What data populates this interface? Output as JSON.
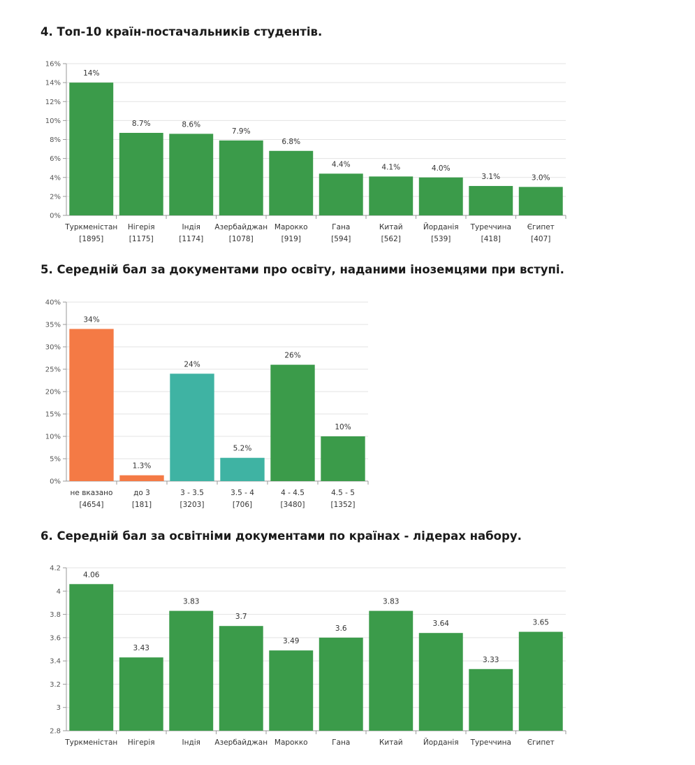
{
  "sections": [
    {
      "title": "4. Топ-10 країн-постачальників студентів."
    },
    {
      "title": "5. Середній бал за документами про освіту, наданими іноземцями при вступі."
    },
    {
      "title": "6. Середній бал за освітніми документами по країнах - лідерах набору."
    }
  ],
  "colors": {
    "green": "#3b9b4a",
    "orange": "#f47a45",
    "teal": "#3fb3a3",
    "grid": "#e3e3e3",
    "axis": "#9a9a9a"
  },
  "chart_data": [
    {
      "type": "bar",
      "categories": [
        "Туркменістан",
        "Нігерія",
        "Індія",
        "Азербайджан",
        "Марокко",
        "Гана",
        "Китай",
        "Йорданія",
        "Туреччина",
        "Єгипет"
      ],
      "counts": [
        "[1895]",
        "[1175]",
        "[1174]",
        "[1078]",
        "[919]",
        "[594]",
        "[562]",
        "[539]",
        "[418]",
        "[407]"
      ],
      "values": [
        14,
        8.7,
        8.6,
        7.9,
        6.8,
        4.4,
        4.1,
        4.0,
        3.1,
        3.0
      ],
      "data_labels": [
        "14%",
        "8.7%",
        "8.6%",
        "7.9%",
        "6.8%",
        "4.4%",
        "4.1%",
        "4.0%",
        "3.1%",
        "3.0%"
      ],
      "ylim": [
        0,
        16
      ],
      "yticks": [
        "0%",
        "2%",
        "4%",
        "6%",
        "8%",
        "10%",
        "12%",
        "14%",
        "16%"
      ],
      "bar_colors": [
        "green",
        "green",
        "green",
        "green",
        "green",
        "green",
        "green",
        "green",
        "green",
        "green"
      ],
      "grid": true
    },
    {
      "type": "bar",
      "categories": [
        "не вказано",
        "до 3",
        "3 - 3.5",
        "3.5 - 4",
        "4 - 4.5",
        "4.5 - 5"
      ],
      "counts": [
        "[4654]",
        "[181]",
        "[3203]",
        "[706]",
        "[3480]",
        "[1352]"
      ],
      "values": [
        34,
        1.3,
        24,
        5.2,
        26,
        10
      ],
      "data_labels": [
        "34%",
        "1.3%",
        "24%",
        "5.2%",
        "26%",
        "10%"
      ],
      "ylim": [
        0,
        40
      ],
      "yticks": [
        "0%",
        "5%",
        "10%",
        "15%",
        "20%",
        "25%",
        "30%",
        "35%",
        "40%"
      ],
      "bar_colors": [
        "orange",
        "orange",
        "teal",
        "teal",
        "green",
        "green"
      ],
      "grid": true
    },
    {
      "type": "bar",
      "categories": [
        "Туркменістан",
        "Нігерія",
        "Індія",
        "Азербайджан",
        "Марокко",
        "Гана",
        "Китай",
        "Йорданія",
        "Туреччина",
        "Єгипет"
      ],
      "values": [
        4.06,
        3.43,
        3.83,
        3.7,
        3.49,
        3.6,
        3.83,
        3.64,
        3.33,
        3.65
      ],
      "data_labels": [
        "4.06",
        "3.43",
        "3.83",
        "3.7",
        "3.49",
        "3.6",
        "3.83",
        "3.64",
        "3.33",
        "3.65"
      ],
      "ylim": [
        2.8,
        4.2
      ],
      "yticks": [
        "2.8",
        "3",
        "3.2",
        "3.4",
        "3.6",
        "3.8",
        "4",
        "4.2"
      ],
      "bar_colors": [
        "green",
        "green",
        "green",
        "green",
        "green",
        "green",
        "green",
        "green",
        "green",
        "green"
      ],
      "grid": true
    }
  ]
}
